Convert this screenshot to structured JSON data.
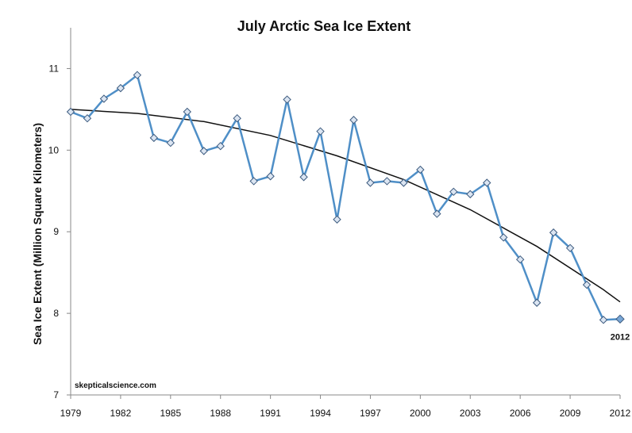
{
  "chart_data": {
    "type": "line",
    "title": "July Arctic Sea Ice Extent",
    "ylabel": "Sea Ice Extent (Million Square Kilometers)",
    "xlabel": "",
    "x": [
      1979,
      1980,
      1981,
      1982,
      1983,
      1984,
      1985,
      1986,
      1987,
      1988,
      1989,
      1990,
      1991,
      1992,
      1993,
      1994,
      1995,
      1996,
      1997,
      1998,
      1999,
      2000,
      2001,
      2002,
      2003,
      2004,
      2005,
      2006,
      2007,
      2008,
      2009,
      2010,
      2011,
      2012
    ],
    "series": [
      {
        "values": [
          10.47,
          10.39,
          10.63,
          10.76,
          10.92,
          10.15,
          10.09,
          10.47,
          9.99,
          10.05,
          10.39,
          9.62,
          9.68,
          10.62,
          9.67,
          10.23,
          9.15,
          10.37,
          9.6,
          9.62,
          9.6,
          9.76,
          9.22,
          9.49,
          9.46,
          9.6,
          8.93,
          8.66,
          8.13,
          8.99,
          8.8,
          8.35,
          7.92,
          7.93
        ],
        "color": "#4f8fc7"
      }
    ],
    "trend": {
      "type": "quadratic",
      "x": [
        1979,
        1983,
        1987,
        1991,
        1995,
        1999,
        2003,
        2007,
        2011,
        2012
      ],
      "values": [
        10.5,
        10.45,
        10.35,
        10.18,
        9.93,
        9.64,
        9.27,
        8.82,
        8.29,
        8.14
      ],
      "color": "#111111"
    },
    "highlight": {
      "x": 2012,
      "label": "2012"
    },
    "xticks": [
      1979,
      1982,
      1985,
      1988,
      1991,
      1994,
      1997,
      2000,
      2003,
      2006,
      2009,
      2012
    ],
    "yticks": [
      7,
      8,
      9,
      10,
      11
    ],
    "xlim": [
      1979,
      2012
    ],
    "ylim": [
      7,
      11.5
    ],
    "grid": false,
    "legend": "none",
    "watermark": "skepticalscience.com",
    "colors": {
      "line": "#4f8fc7",
      "marker_fill": "#dbe5f2",
      "marker_stroke": "#3c5a7e",
      "trend": "#111111",
      "axis": "#888888"
    }
  }
}
